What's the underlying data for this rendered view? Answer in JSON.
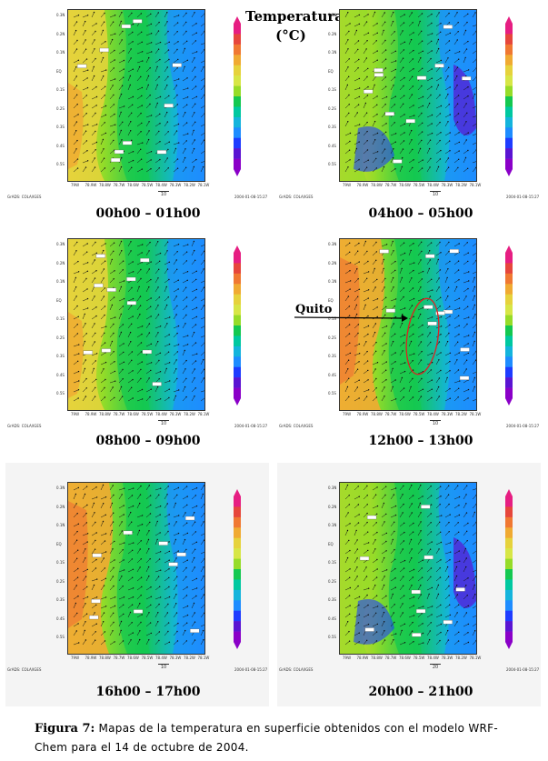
{
  "legend": {
    "title_line1": "Temperatura",
    "title_line2": "(°C)",
    "colors": [
      "#8a00c8",
      "#5a14d2",
      "#1e3cff",
      "#1e8cff",
      "#14b4dc",
      "#00c8a0",
      "#14c850",
      "#96dc28",
      "#d7e646",
      "#e6d23c",
      "#f0aa32",
      "#f07832",
      "#e6463c",
      "#e61e82"
    ]
  },
  "axis": {
    "lat_ticks": [
      "0.3N",
      "0.2N",
      "0.1N",
      "EQ",
      "0.1S",
      "0.2S",
      "0.3S",
      "0.4S",
      "0.5S"
    ],
    "lon_ticks": [
      "79W",
      "78.9W",
      "78.8W",
      "78.7W",
      "78.6W",
      "78.5W",
      "78.4W",
      "78.3W",
      "78.2W",
      "78.1W"
    ]
  },
  "panels": [
    {
      "time": "00h00 – 01h00",
      "grads": "GrADS: COLA/IGES",
      "date": "2004-01-08-15:27",
      "wind_ref": "10"
    },
    {
      "time": "04h00 – 05h00",
      "grads": "GrADS: COLA/IGES",
      "date": "2004-01-08-15:27",
      "wind_ref": "10"
    },
    {
      "time": "08h00 – 09h00",
      "grads": "GrADS: COLA/IGES",
      "date": "2004-01-08-15:27",
      "wind_ref": "10"
    },
    {
      "time": "12h00 – 13h00",
      "grads": "GrADS: COLA/IGES",
      "date": "2004-01-08-15:27",
      "wind_ref": "10"
    },
    {
      "time": "16h00 – 17h00",
      "grads": "GrADS: COLA/IGES",
      "date": "2004-01-08-15:27",
      "wind_ref": "10"
    },
    {
      "time": "20h00 – 21h00",
      "grads": "GrADS: COLA/IGES",
      "date": "2004-01-08-15:27",
      "wind_ref": "20"
    }
  ],
  "annotation": {
    "quito": "Quito"
  },
  "caption": {
    "label": "Figura 7:",
    "text": "Mapas de la temperatura en superficie obtenidos con el modelo WRF-Chem para el 14 de octubre de 2004."
  }
}
